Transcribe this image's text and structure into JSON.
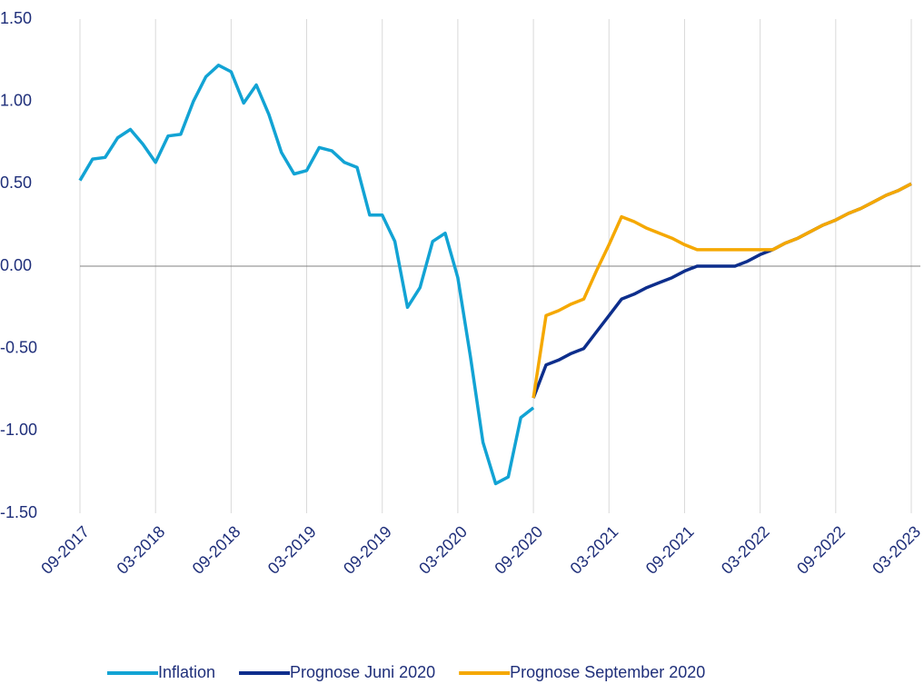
{
  "chart_data": {
    "type": "line",
    "categories": [
      "09-2017",
      null,
      null,
      null,
      null,
      null,
      "03-2018",
      null,
      null,
      null,
      null,
      null,
      "09-2018",
      null,
      null,
      null,
      null,
      null,
      "03-2019",
      null,
      null,
      null,
      null,
      null,
      "09-2019",
      null,
      null,
      null,
      null,
      null,
      "03-2020",
      null,
      null,
      null,
      null,
      null,
      "09-2020",
      null,
      null,
      null,
      null,
      null,
      "03-2021",
      null,
      null,
      null,
      null,
      null,
      "09-2021",
      null,
      null,
      null,
      null,
      null,
      "03-2022",
      null,
      null,
      null,
      null,
      null,
      "09-2022",
      null,
      null,
      null,
      null,
      null,
      "03-2023"
    ],
    "series": [
      {
        "name": "Inflation",
        "color": "#12a3d4",
        "values": [
          0.52,
          0.65,
          0.66,
          0.78,
          0.83,
          0.74,
          0.63,
          0.79,
          0.8,
          1.0,
          1.15,
          1.22,
          1.18,
          0.99,
          1.1,
          0.92,
          0.69,
          0.56,
          0.58,
          0.72,
          0.7,
          0.63,
          0.6,
          0.31,
          0.31,
          0.15,
          -0.25,
          -0.13,
          0.15,
          0.2,
          -0.07,
          -0.55,
          -1.07,
          -1.32,
          -1.28,
          -0.92,
          -0.86,
          null,
          null,
          null,
          null,
          null,
          null,
          null,
          null,
          null,
          null,
          null,
          null,
          null,
          null,
          null,
          null,
          null,
          null,
          null,
          null,
          null,
          null,
          null,
          null,
          null,
          null,
          null,
          null,
          null,
          null
        ]
      },
      {
        "name": "Prognose Juni 2020",
        "color": "#0d2e8c",
        "values": [
          null,
          null,
          null,
          null,
          null,
          null,
          null,
          null,
          null,
          null,
          null,
          null,
          null,
          null,
          null,
          null,
          null,
          null,
          null,
          null,
          null,
          null,
          null,
          null,
          null,
          null,
          null,
          null,
          null,
          null,
          null,
          null,
          null,
          null,
          null,
          null,
          -0.8,
          -0.6,
          -0.57,
          -0.53,
          -0.5,
          -0.4,
          -0.3,
          -0.2,
          -0.17,
          -0.13,
          -0.1,
          -0.07,
          -0.03,
          0.0,
          0.0,
          0.0,
          0.0,
          0.03,
          0.07,
          0.1,
          0.14,
          0.17,
          0.21,
          0.25,
          0.28,
          0.32,
          0.35,
          0.39,
          0.43,
          0.46,
          0.5
        ]
      },
      {
        "name": "Prognose September 2020",
        "color": "#f5a800",
        "values": [
          null,
          null,
          null,
          null,
          null,
          null,
          null,
          null,
          null,
          null,
          null,
          null,
          null,
          null,
          null,
          null,
          null,
          null,
          null,
          null,
          null,
          null,
          null,
          null,
          null,
          null,
          null,
          null,
          null,
          null,
          null,
          null,
          null,
          null,
          null,
          null,
          -0.8,
          -0.3,
          -0.27,
          -0.23,
          -0.2,
          -0.03,
          0.13,
          0.3,
          0.27,
          0.23,
          0.2,
          0.17,
          0.13,
          0.1,
          0.1,
          0.1,
          0.1,
          0.1,
          0.1,
          0.1,
          0.14,
          0.17,
          0.21,
          0.25,
          0.28,
          0.32,
          0.35,
          0.39,
          0.43,
          0.46,
          0.5
        ]
      }
    ],
    "ylim": [
      -1.5,
      1.5
    ],
    "yticks": [
      {
        "value": 1.5,
        "label": "1.50"
      },
      {
        "value": 1,
        "label": "1.00"
      },
      {
        "value": 0.5,
        "label": "0.50"
      },
      {
        "value": 0,
        "label": "0.00"
      },
      {
        "value": -0.5,
        "label": "-0.50"
      },
      {
        "value": -1,
        "label": "-1.00"
      },
      {
        "value": -1.5,
        "label": "-1.50"
      }
    ],
    "xgrid": true,
    "legend": "bottom"
  }
}
